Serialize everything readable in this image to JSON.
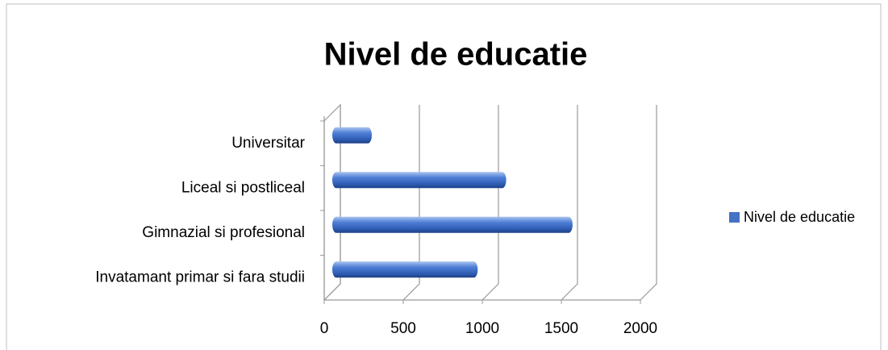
{
  "chart_data": {
    "type": "bar",
    "orientation": "horizontal",
    "title": "Nivel de educatie",
    "categories": [
      "Universitar",
      "Liceal si postliceal",
      "Gimnazial si profesional",
      "Invatamant primar si fara studii"
    ],
    "series": [
      {
        "name": "Nivel de educatie",
        "color": "#4472c4",
        "values": [
          250,
          1100,
          1520,
          920
        ]
      }
    ],
    "xlim": [
      0,
      2000
    ],
    "xticks": [
      0,
      500,
      1000,
      1500,
      2000
    ],
    "grid": true,
    "legend": "right"
  }
}
